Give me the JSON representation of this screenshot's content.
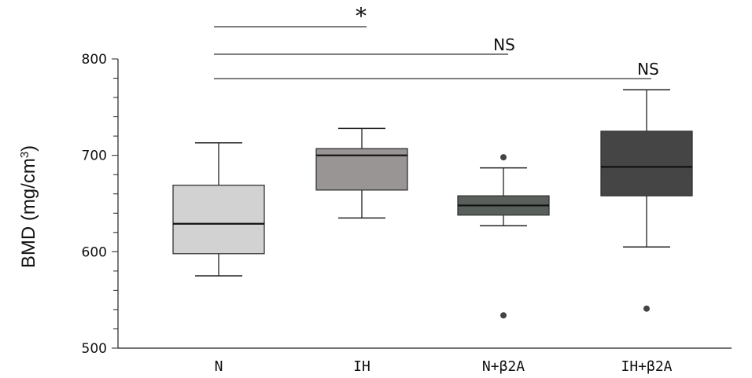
{
  "chart_data": {
    "type": "box",
    "ylabel": "BMD (mg/cm",
    "ylabel_sup": "3",
    "ylabel_close": ")",
    "ylim": [
      500,
      800
    ],
    "yticks": [
      500,
      600,
      700,
      800
    ],
    "categories": [
      "N",
      "IH",
      "N+β2A",
      "IH+β2A"
    ],
    "boxes": [
      {
        "category": "N",
        "min": 575,
        "q1": 598,
        "median": 629,
        "q3": 669,
        "max": 713,
        "outliers": [],
        "color": "#d2d2d2"
      },
      {
        "category": "IH",
        "min": 635,
        "q1": 664,
        "median": 700,
        "q3": 707,
        "max": 728,
        "outliers": [],
        "color": "#9a9595"
      },
      {
        "category": "N+β2A",
        "min": 627,
        "q1": 638,
        "median": 648,
        "q3": 658,
        "max": 687,
        "outliers": [
          698,
          534
        ],
        "color": "#59605c"
      },
      {
        "category": "IH+β2A",
        "min": 605,
        "q1": 658,
        "median": 688,
        "q3": 725,
        "max": 768,
        "outliers": [
          541
        ],
        "color": "#454545"
      }
    ],
    "comparisons": [
      {
        "from": "N",
        "to": "IH",
        "label": "*"
      },
      {
        "from": "N",
        "to": "N+β2A",
        "label": "NS"
      },
      {
        "from": "N",
        "to": "IH+β2A",
        "label": "NS"
      }
    ],
    "grid": false,
    "legend": "none"
  }
}
